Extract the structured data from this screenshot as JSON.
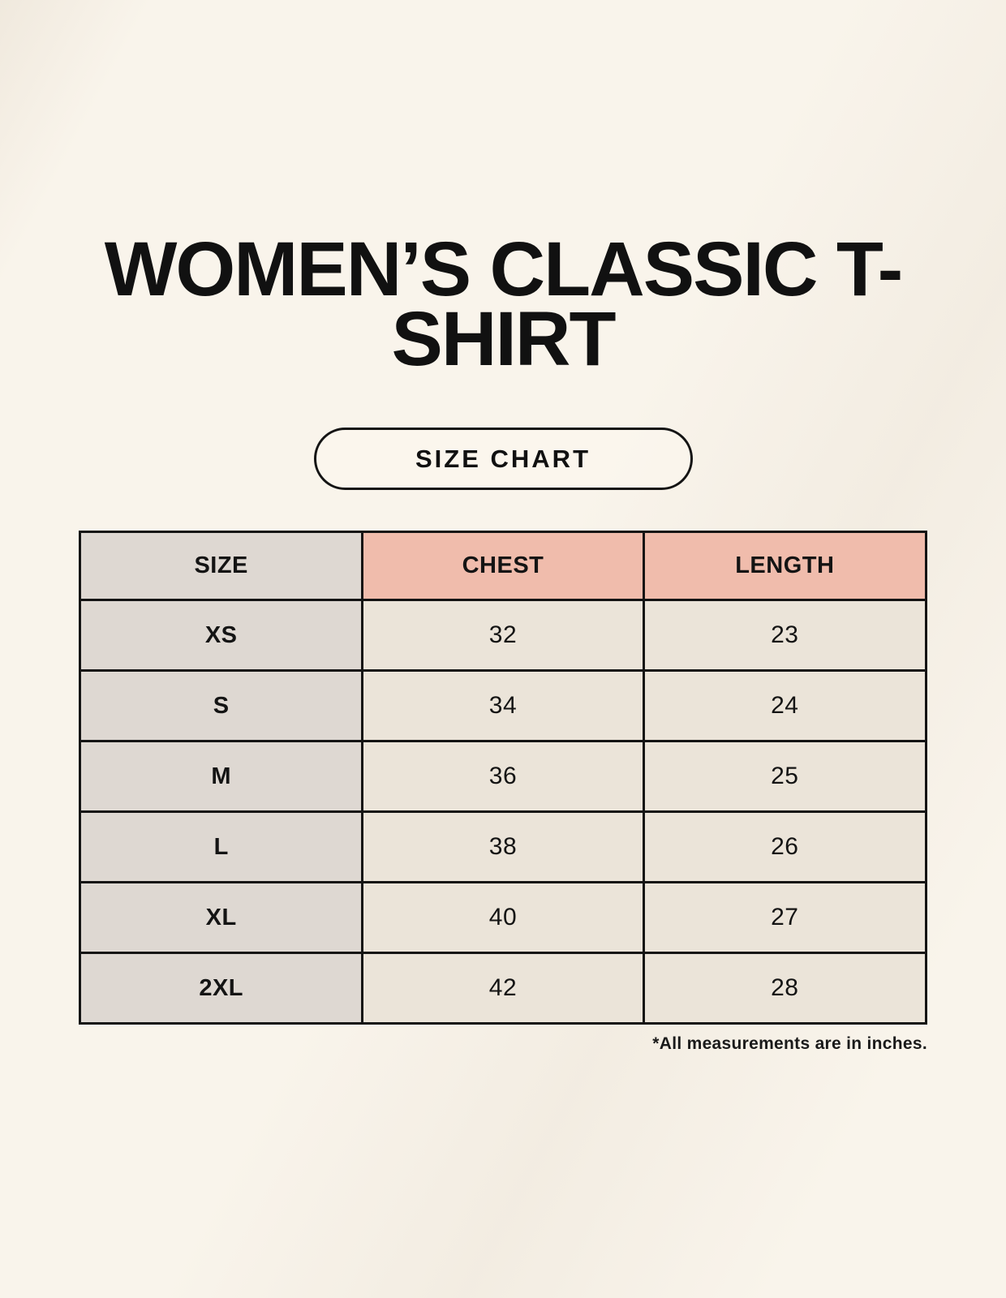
{
  "header": {
    "title": "WOMEN’S CLASSIC T-SHIRT",
    "size_chart_label": "SIZE CHART"
  },
  "table": {
    "headers": [
      "SIZE",
      "CHEST",
      "LENGTH"
    ],
    "rows": [
      {
        "size": "XS",
        "chest": "32",
        "length": "23"
      },
      {
        "size": "S",
        "chest": "34",
        "length": "24"
      },
      {
        "size": "M",
        "chest": "36",
        "length": "25"
      },
      {
        "size": "L",
        "chest": "38",
        "length": "26"
      },
      {
        "size": "XL",
        "chest": "40",
        "length": "27"
      },
      {
        "size": "2XL",
        "chest": "42",
        "length": "28"
      }
    ],
    "footnote": "*All measurements are in inches."
  },
  "colors": {
    "background_cream": "#f9f4eb",
    "header_pink": "#f0bcac",
    "size_column_gray": "#ded8d2",
    "data_cell_beige": "#ebe4d9",
    "ink_black": "#141414"
  },
  "chart_data": {
    "type": "table",
    "title": "WOMEN’S CLASSIC T-SHIRT",
    "subtitle": "SIZE CHART",
    "columns": [
      "SIZE",
      "CHEST",
      "LENGTH"
    ],
    "rows": [
      [
        "XS",
        32,
        23
      ],
      [
        "S",
        34,
        24
      ],
      [
        "M",
        36,
        25
      ],
      [
        "L",
        38,
        26
      ],
      [
        "XL",
        40,
        27
      ],
      [
        "2XL",
        42,
        28
      ]
    ],
    "note": "*All measurements are in inches."
  }
}
